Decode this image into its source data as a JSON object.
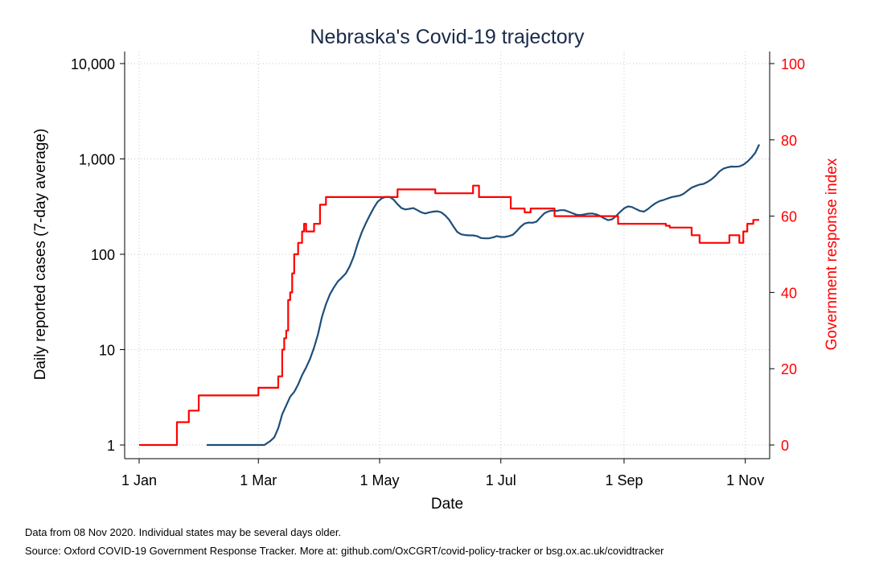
{
  "chart_data": {
    "type": "line",
    "title": "Nebraska's Covid-19 trajectory",
    "xlabel": "Date",
    "ylabel": "Daily reported cases (7-day average)",
    "y2label": "Government response index",
    "x_ticks": [
      "2020-01-01",
      "2020-03-01",
      "2020-05-01",
      "2020-07-01",
      "2020-09-01",
      "2020-11-01"
    ],
    "x_tick_labels": [
      "1 Jan",
      "1 Mar",
      "1 May",
      "1 Jul",
      "1 Sep",
      "1 Nov"
    ],
    "xlim": [
      "2020-01-01",
      "2020-11-08"
    ],
    "y_scale": "log",
    "ylim": [
      1,
      10000
    ],
    "y_ticks": [
      1,
      10,
      100,
      1000,
      10000
    ],
    "y_tick_labels": [
      "1",
      "10",
      "100",
      "1,000",
      "10,000"
    ],
    "y2lim": [
      0,
      100
    ],
    "y2_ticks": [
      0,
      20,
      40,
      60,
      80,
      100
    ],
    "y2_tick_labels": [
      "0",
      "20",
      "40",
      "60",
      "80",
      "100"
    ],
    "grid": true,
    "legend": "none",
    "colors": {
      "cases": "#1f4e79",
      "index": "#ff0000",
      "grid": "#c8c8c8",
      "title": "#1a2a4a"
    },
    "series": [
      {
        "axis": "left",
        "color": "#1f4e79",
        "points": [
          [
            "2020-02-04",
            1
          ],
          [
            "2020-02-20",
            1
          ],
          [
            "2020-03-01",
            1
          ],
          [
            "2020-03-04",
            1
          ],
          [
            "2020-03-07",
            1.1
          ],
          [
            "2020-03-09",
            1.2
          ],
          [
            "2020-03-11",
            1.5
          ],
          [
            "2020-03-13",
            2.1
          ],
          [
            "2020-03-15",
            2.6
          ],
          [
            "2020-03-17",
            3.2
          ],
          [
            "2020-03-19",
            3.6
          ],
          [
            "2020-03-21",
            4.3
          ],
          [
            "2020-03-23",
            5.4
          ],
          [
            "2020-03-25",
            6.5
          ],
          [
            "2020-03-27",
            8
          ],
          [
            "2020-03-29",
            10.5
          ],
          [
            "2020-03-31",
            14.5
          ],
          [
            "2020-04-02",
            22
          ],
          [
            "2020-04-04",
            30
          ],
          [
            "2020-04-06",
            38
          ],
          [
            "2020-04-08",
            45
          ],
          [
            "2020-04-10",
            52
          ],
          [
            "2020-04-12",
            57
          ],
          [
            "2020-04-14",
            63
          ],
          [
            "2020-04-16",
            75
          ],
          [
            "2020-04-18",
            95
          ],
          [
            "2020-04-20",
            130
          ],
          [
            "2020-04-22",
            170
          ],
          [
            "2020-04-24",
            210
          ],
          [
            "2020-04-26",
            255
          ],
          [
            "2020-04-28",
            305
          ],
          [
            "2020-04-30",
            355
          ],
          [
            "2020-05-02",
            385
          ],
          [
            "2020-05-04",
            400
          ],
          [
            "2020-05-06",
            400
          ],
          [
            "2020-05-08",
            375
          ],
          [
            "2020-05-10",
            335
          ],
          [
            "2020-05-12",
            305
          ],
          [
            "2020-05-14",
            295
          ],
          [
            "2020-05-16",
            300
          ],
          [
            "2020-05-18",
            305
          ],
          [
            "2020-05-20",
            290
          ],
          [
            "2020-05-22",
            275
          ],
          [
            "2020-05-24",
            268
          ],
          [
            "2020-05-26",
            275
          ],
          [
            "2020-05-28",
            280
          ],
          [
            "2020-05-30",
            283
          ],
          [
            "2020-06-01",
            275
          ],
          [
            "2020-06-03",
            255
          ],
          [
            "2020-06-05",
            230
          ],
          [
            "2020-06-07",
            198
          ],
          [
            "2020-06-09",
            172
          ],
          [
            "2020-06-11",
            162
          ],
          [
            "2020-06-13",
            159
          ],
          [
            "2020-06-15",
            158
          ],
          [
            "2020-06-17",
            158
          ],
          [
            "2020-06-19",
            155
          ],
          [
            "2020-06-21",
            148
          ],
          [
            "2020-06-23",
            147
          ],
          [
            "2020-06-25",
            147
          ],
          [
            "2020-06-27",
            150
          ],
          [
            "2020-06-29",
            155
          ],
          [
            "2020-07-01",
            152
          ],
          [
            "2020-07-03",
            152
          ],
          [
            "2020-07-05",
            155
          ],
          [
            "2020-07-07",
            160
          ],
          [
            "2020-07-09",
            175
          ],
          [
            "2020-07-11",
            195
          ],
          [
            "2020-07-13",
            210
          ],
          [
            "2020-07-15",
            215
          ],
          [
            "2020-07-17",
            214
          ],
          [
            "2020-07-19",
            220
          ],
          [
            "2020-07-21",
            245
          ],
          [
            "2020-07-23",
            270
          ],
          [
            "2020-07-25",
            282
          ],
          [
            "2020-07-27",
            287
          ],
          [
            "2020-07-29",
            285
          ],
          [
            "2020-07-31",
            290
          ],
          [
            "2020-08-02",
            290
          ],
          [
            "2020-08-04",
            280
          ],
          [
            "2020-08-06",
            270
          ],
          [
            "2020-08-08",
            260
          ],
          [
            "2020-08-10",
            258
          ],
          [
            "2020-08-12",
            262
          ],
          [
            "2020-08-14",
            267
          ],
          [
            "2020-08-16",
            268
          ],
          [
            "2020-08-18",
            262
          ],
          [
            "2020-08-20",
            252
          ],
          [
            "2020-08-22",
            238
          ],
          [
            "2020-08-24",
            228
          ],
          [
            "2020-08-26",
            233
          ],
          [
            "2020-08-28",
            252
          ],
          [
            "2020-08-30",
            278
          ],
          [
            "2020-09-01",
            303
          ],
          [
            "2020-09-03",
            318
          ],
          [
            "2020-09-05",
            313
          ],
          [
            "2020-09-07",
            298
          ],
          [
            "2020-09-09",
            285
          ],
          [
            "2020-09-11",
            280
          ],
          [
            "2020-09-13",
            298
          ],
          [
            "2020-09-15",
            323
          ],
          [
            "2020-09-17",
            345
          ],
          [
            "2020-09-19",
            362
          ],
          [
            "2020-09-21",
            372
          ],
          [
            "2020-09-23",
            385
          ],
          [
            "2020-09-25",
            398
          ],
          [
            "2020-09-27",
            405
          ],
          [
            "2020-09-29",
            412
          ],
          [
            "2020-10-01",
            432
          ],
          [
            "2020-10-03",
            465
          ],
          [
            "2020-10-05",
            500
          ],
          [
            "2020-10-07",
            520
          ],
          [
            "2020-10-09",
            538
          ],
          [
            "2020-10-11",
            548
          ],
          [
            "2020-10-13",
            575
          ],
          [
            "2020-10-15",
            612
          ],
          [
            "2020-10-17",
            665
          ],
          [
            "2020-10-19",
            740
          ],
          [
            "2020-10-21",
            790
          ],
          [
            "2020-10-23",
            815
          ],
          [
            "2020-10-25",
            832
          ],
          [
            "2020-10-27",
            828
          ],
          [
            "2020-10-29",
            835
          ],
          [
            "2020-10-31",
            870
          ],
          [
            "2020-11-02",
            935
          ],
          [
            "2020-11-04",
            1030
          ],
          [
            "2020-11-06",
            1160
          ],
          [
            "2020-11-08",
            1420
          ]
        ]
      },
      {
        "axis": "right",
        "color": "#ff0000",
        "step": true,
        "points": [
          [
            "2020-01-01",
            0
          ],
          [
            "2020-01-20",
            6
          ],
          [
            "2020-01-26",
            9
          ],
          [
            "2020-01-31",
            13
          ],
          [
            "2020-03-01",
            15
          ],
          [
            "2020-03-11",
            18
          ],
          [
            "2020-03-13",
            25
          ],
          [
            "2020-03-14",
            28
          ],
          [
            "2020-03-15",
            30
          ],
          [
            "2020-03-16",
            38
          ],
          [
            "2020-03-17",
            40
          ],
          [
            "2020-03-18",
            45
          ],
          [
            "2020-03-19",
            50
          ],
          [
            "2020-03-21",
            53
          ],
          [
            "2020-03-23",
            56
          ],
          [
            "2020-03-24",
            58
          ],
          [
            "2020-03-25",
            56
          ],
          [
            "2020-03-29",
            58
          ],
          [
            "2020-04-01",
            63
          ],
          [
            "2020-04-04",
            65
          ],
          [
            "2020-05-10",
            67
          ],
          [
            "2020-05-29",
            66
          ],
          [
            "2020-06-17",
            68
          ],
          [
            "2020-06-20",
            65
          ],
          [
            "2020-07-06",
            62
          ],
          [
            "2020-07-13",
            61
          ],
          [
            "2020-07-16",
            62
          ],
          [
            "2020-07-28",
            60
          ],
          [
            "2020-08-29",
            58
          ],
          [
            "2020-09-22",
            57.5
          ],
          [
            "2020-09-24",
            57
          ],
          [
            "2020-10-05",
            55
          ],
          [
            "2020-10-09",
            53
          ],
          [
            "2020-10-24",
            55
          ],
          [
            "2020-10-29",
            53
          ],
          [
            "2020-10-31",
            56
          ],
          [
            "2020-11-02",
            58
          ],
          [
            "2020-11-05",
            59
          ]
        ],
        "end": "2020-11-08"
      }
    ]
  },
  "notes": {
    "line1": "Data from 08 Nov 2020. Individual states may be several days older.",
    "line2": "Source: Oxford COVID-19 Government Response Tracker. More at: github.com/OxCGRT/covid-policy-tracker or bsg.ox.ac.uk/covidtracker"
  }
}
